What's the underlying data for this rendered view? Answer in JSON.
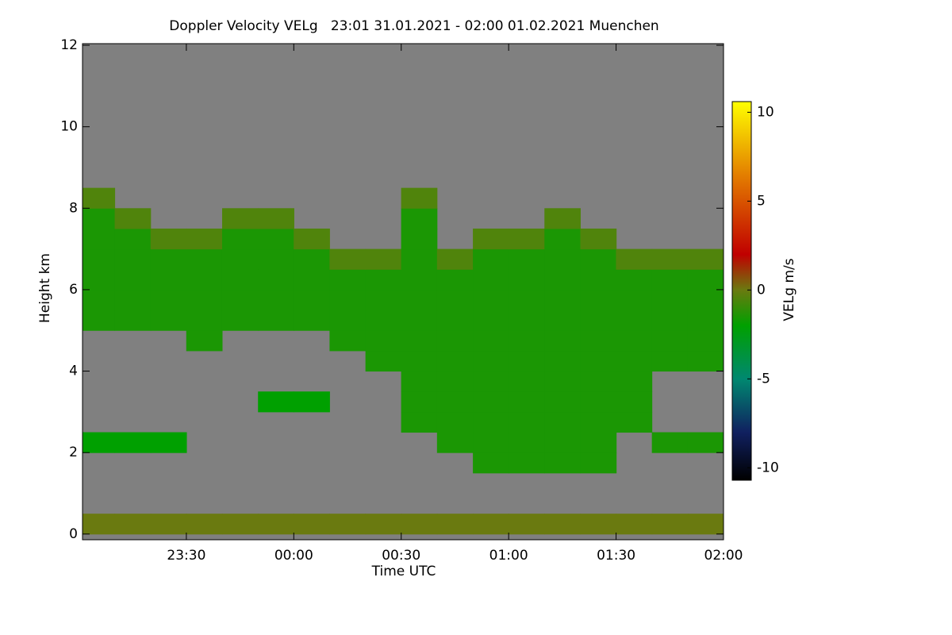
{
  "chart_data": {
    "type": "heatmap",
    "title": "Doppler Velocity VELg   23:01 31.01.2021 - 02:00 01.02.2021 Muenchen",
    "x_label": "Time UTC",
    "y_label": "Height km",
    "colorbar_label": "VELg m/s",
    "background": "#808080",
    "xlim": [
      23.0167,
      26.0
    ],
    "ylim": [
      -0.14,
      12.04
    ],
    "clim": [
      -10.7,
      10.6
    ],
    "xticks": [
      {
        "value": 23.5,
        "label": "23:30"
      },
      {
        "value": 24.0,
        "label": "00:00"
      },
      {
        "value": 24.5,
        "label": "00:30"
      },
      {
        "value": 25.0,
        "label": "01:00"
      },
      {
        "value": 25.5,
        "label": "01:30"
      },
      {
        "value": 26.0,
        "label": "02:00"
      }
    ],
    "yticks": [
      0,
      2,
      4,
      6,
      8,
      10,
      12
    ],
    "cticks": [
      -10,
      -5,
      0,
      5,
      10
    ],
    "colorscale": [
      [
        -10.7,
        "#000000"
      ],
      [
        -8,
        "#102060"
      ],
      [
        -5,
        "#008870"
      ],
      [
        -2,
        "#00a000"
      ],
      [
        0,
        "#6a7a10"
      ],
      [
        2,
        "#c00000"
      ],
      [
        6,
        "#e07000"
      ],
      [
        10.6,
        "#ffff00"
      ]
    ],
    "x": [
      23.083,
      23.25,
      23.417,
      23.583,
      23.75,
      23.917,
      24.083,
      24.25,
      24.417,
      24.583,
      24.75,
      24.917,
      25.083,
      25.25,
      25.417,
      25.583,
      25.75,
      25.917
    ],
    "y": [
      0.25,
      0.75,
      1.25,
      1.75,
      2.25,
      2.75,
      3.25,
      3.75,
      4.25,
      4.75,
      5.25,
      5.75,
      6.25,
      6.75,
      7.25,
      7.75,
      8.25,
      8.75,
      9.25,
      9.75,
      10.25,
      10.75,
      11.25,
      11.75
    ],
    "z": [
      [
        0,
        0,
        0,
        0,
        0,
        0,
        0,
        0,
        0,
        0,
        0,
        0,
        0,
        0,
        0,
        0,
        0,
        0
      ],
      [
        null,
        null,
        null,
        null,
        null,
        null,
        null,
        null,
        null,
        null,
        null,
        null,
        null,
        null,
        null,
        null,
        null,
        null
      ],
      [
        null,
        null,
        null,
        null,
        null,
        null,
        null,
        null,
        null,
        null,
        null,
        null,
        null,
        null,
        null,
        null,
        null,
        null
      ],
      [
        null,
        null,
        null,
        null,
        null,
        null,
        null,
        null,
        null,
        null,
        null,
        -1.5,
        -1.5,
        -1.5,
        -1.5,
        null,
        null,
        null
      ],
      [
        -2,
        -2,
        -2,
        null,
        null,
        null,
        null,
        null,
        null,
        null,
        -1.5,
        -1.5,
        -1.5,
        -1.5,
        -1.5,
        null,
        -1.5,
        -1.5
      ],
      [
        null,
        null,
        null,
        null,
        null,
        null,
        null,
        null,
        null,
        -1.5,
        -1.5,
        -1.5,
        -1.5,
        -1.5,
        -1.5,
        -1.5,
        null,
        null
      ],
      [
        null,
        null,
        null,
        null,
        null,
        -2,
        -2,
        null,
        null,
        -1.5,
        -1.5,
        -1.5,
        -1.5,
        -1.5,
        -1.5,
        -1.5,
        null,
        null
      ],
      [
        null,
        null,
        null,
        null,
        null,
        null,
        null,
        null,
        null,
        -1.5,
        -1.5,
        -1.5,
        -1.5,
        -1.5,
        -1.5,
        -1.5,
        null,
        null
      ],
      [
        null,
        null,
        null,
        null,
        null,
        null,
        null,
        null,
        -1.5,
        -1.5,
        -1.5,
        -1.5,
        -1.5,
        -1.5,
        -1.5,
        -1.5,
        -1.5,
        -1.5
      ],
      [
        null,
        null,
        null,
        -1.5,
        null,
        null,
        null,
        -1.5,
        -1.5,
        -1.5,
        -1.5,
        -1.5,
        -1.5,
        -1.5,
        -1.5,
        -1.5,
        -1.5,
        -1.5
      ],
      [
        -1.5,
        -1.5,
        -1.5,
        -1.5,
        -1.5,
        -1.5,
        -1.5,
        -1.5,
        -1.5,
        -1.5,
        -1.5,
        -1.5,
        -1.5,
        -1.5,
        -1.5,
        -1.5,
        -1.5,
        -1.5
      ],
      [
        -1.5,
        -1.5,
        -1.5,
        -1.5,
        -1.5,
        -1.5,
        -1.5,
        -1.5,
        -1.5,
        -1.5,
        -1.5,
        -1.5,
        -1.5,
        -1.5,
        -1.5,
        -1.5,
        -1.5,
        -1.5
      ],
      [
        -1.5,
        -1.5,
        -1.5,
        -1.5,
        -1.5,
        -1.5,
        -1.5,
        -1.5,
        -1.5,
        -1.5,
        -1.5,
        -1.5,
        -1.5,
        -1.5,
        -1.5,
        -1.5,
        -1.5,
        -1.5
      ],
      [
        -1.5,
        -1.5,
        -1.5,
        -1.5,
        -1.5,
        -1.5,
        -1.5,
        -0.5,
        -0.5,
        -1.5,
        -0.5,
        -1.5,
        -1.5,
        -1.5,
        -1.5,
        -0.5,
        -0.5,
        -0.5
      ],
      [
        -1.5,
        -1.5,
        -0.5,
        -0.5,
        -1.5,
        -1.5,
        -0.5,
        null,
        null,
        -1.5,
        null,
        -0.5,
        -0.5,
        -1.5,
        -0.5,
        null,
        null,
        null
      ],
      [
        -1.5,
        -0.5,
        null,
        null,
        -0.5,
        -0.5,
        null,
        null,
        null,
        -1.5,
        null,
        null,
        null,
        -0.5,
        null,
        null,
        null,
        null
      ],
      [
        -0.5,
        null,
        null,
        null,
        null,
        null,
        null,
        null,
        null,
        -0.5,
        null,
        null,
        null,
        null,
        null,
        null,
        null,
        null
      ],
      [
        null,
        null,
        null,
        null,
        null,
        null,
        null,
        null,
        null,
        null,
        null,
        null,
        null,
        null,
        null,
        null,
        null,
        null
      ],
      [
        null,
        null,
        null,
        null,
        null,
        null,
        null,
        null,
        null,
        null,
        null,
        null,
        null,
        null,
        null,
        null,
        null,
        null
      ],
      [
        null,
        null,
        null,
        null,
        null,
        null,
        null,
        null,
        null,
        null,
        null,
        null,
        null,
        null,
        null,
        null,
        null,
        null
      ],
      [
        null,
        null,
        null,
        null,
        null,
        null,
        null,
        null,
        null,
        null,
        null,
        null,
        null,
        null,
        null,
        null,
        null,
        null
      ],
      [
        null,
        null,
        null,
        null,
        null,
        null,
        null,
        null,
        null,
        null,
        null,
        null,
        null,
        null,
        null,
        null,
        null,
        null
      ],
      [
        null,
        null,
        null,
        null,
        null,
        null,
        null,
        null,
        null,
        null,
        null,
        null,
        null,
        null,
        null,
        null,
        null,
        null
      ],
      [
        null,
        null,
        null,
        null,
        null,
        null,
        null,
        null,
        null,
        null,
        null,
        null,
        null,
        null,
        null,
        null,
        null,
        null
      ]
    ]
  }
}
